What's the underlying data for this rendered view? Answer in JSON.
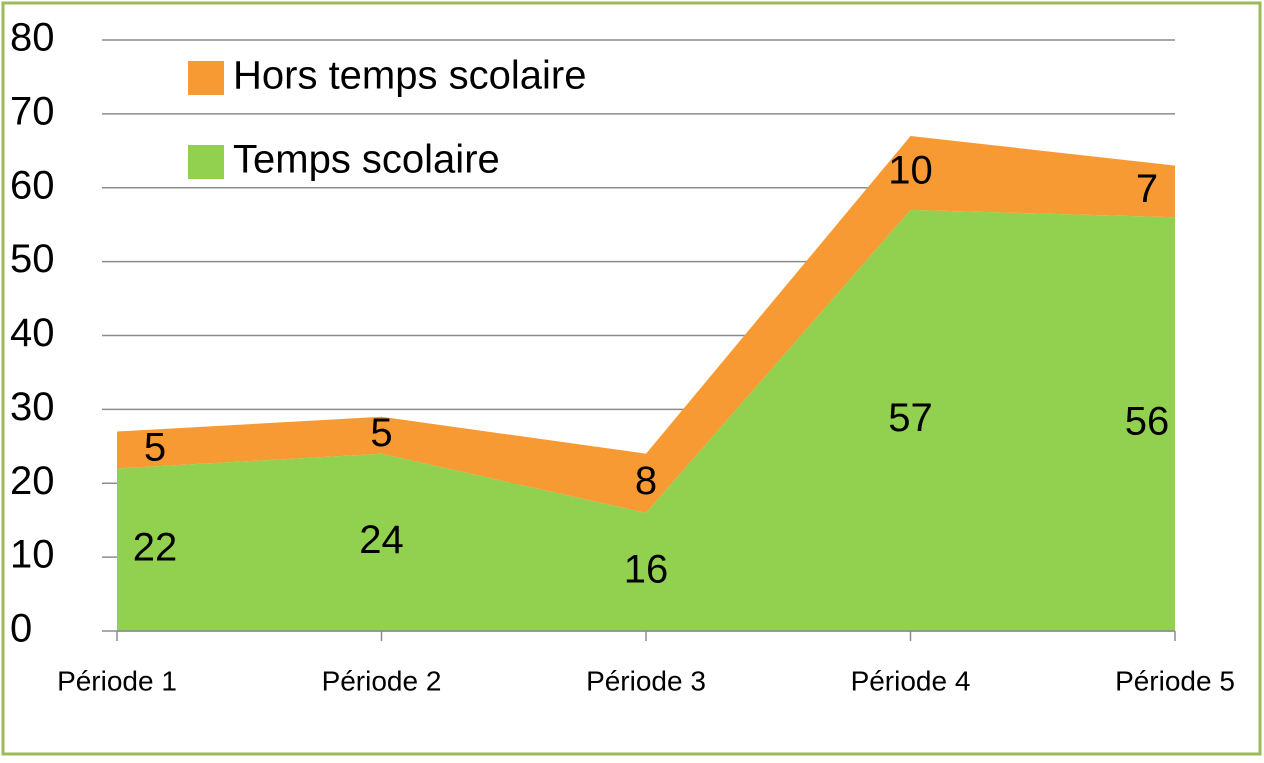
{
  "chart_data": {
    "type": "stacked_area",
    "categories": [
      "Période 1",
      "Période 2",
      "Période 3",
      "Période 4",
      "Période 5"
    ],
    "series": [
      {
        "name": "Temps scolaire",
        "color": "#92d050",
        "values": [
          22,
          24,
          16,
          57,
          56
        ]
      },
      {
        "name": "Hors temps scolaire",
        "color": "#f79a33",
        "values": [
          5,
          5,
          8,
          10,
          7
        ]
      }
    ],
    "ylim": [
      0,
      80
    ],
    "yticks": [
      0,
      10,
      20,
      30,
      40,
      50,
      60,
      70,
      80
    ],
    "grid": true,
    "legend": "top-left"
  }
}
